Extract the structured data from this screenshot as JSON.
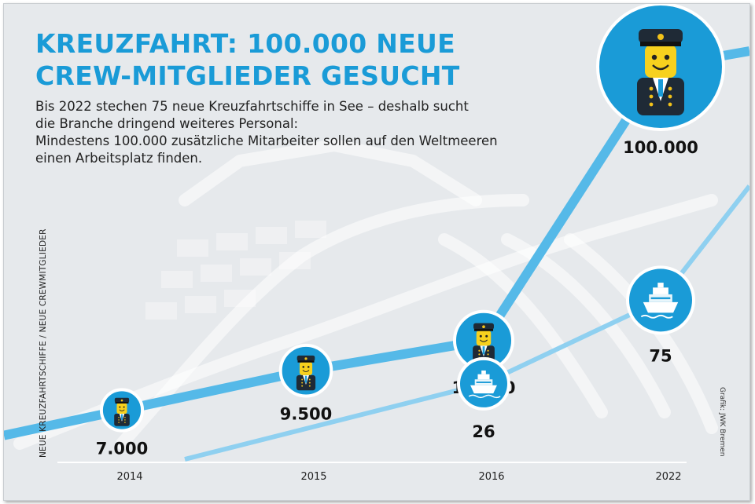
{
  "header": {
    "title_line1": "KREUZFAHRT: 100.000 NEUE",
    "title_line2": "CREW-MITGLIEDER GESUCHT",
    "intro_lines": [
      "Bis 2022 stechen 75 neue Kreuzfahrtschiffe in See – deshalb sucht",
      "die Branche dringend weiteres Personal:",
      "Mindestens 100.000 zusätzliche Mitarbeiter sollen auf den Weltmeeren",
      "einen Arbeitsplatz finden."
    ]
  },
  "axis_label": "NEUE KREUZFAHRTSCHIFFE / NEUE CREWMITGLIEDER",
  "credit": "Grafik: JWK Bremen",
  "colors": {
    "brand_blue": "#1a9bd7",
    "crew_line": "#55b9e8",
    "ship_line": "#8fd0f0",
    "background": "#e6e9ec"
  },
  "chart_data": {
    "type": "line",
    "categories": [
      "2014",
      "2015",
      "2016",
      "2022"
    ],
    "series": [
      {
        "key": "crew",
        "values": [
          7000,
          9500,
          12000,
          100000
        ],
        "labels": [
          "7.000",
          "9.500",
          "12.000",
          "100.000"
        ],
        "icon": "crew-captain-icon"
      },
      {
        "key": "ships",
        "values": [
          null,
          null,
          26,
          75
        ],
        "labels": [
          "",
          "",
          "26",
          "75"
        ],
        "icon": "cruise-ship-icon"
      }
    ],
    "grid": false,
    "legend": "none"
  }
}
